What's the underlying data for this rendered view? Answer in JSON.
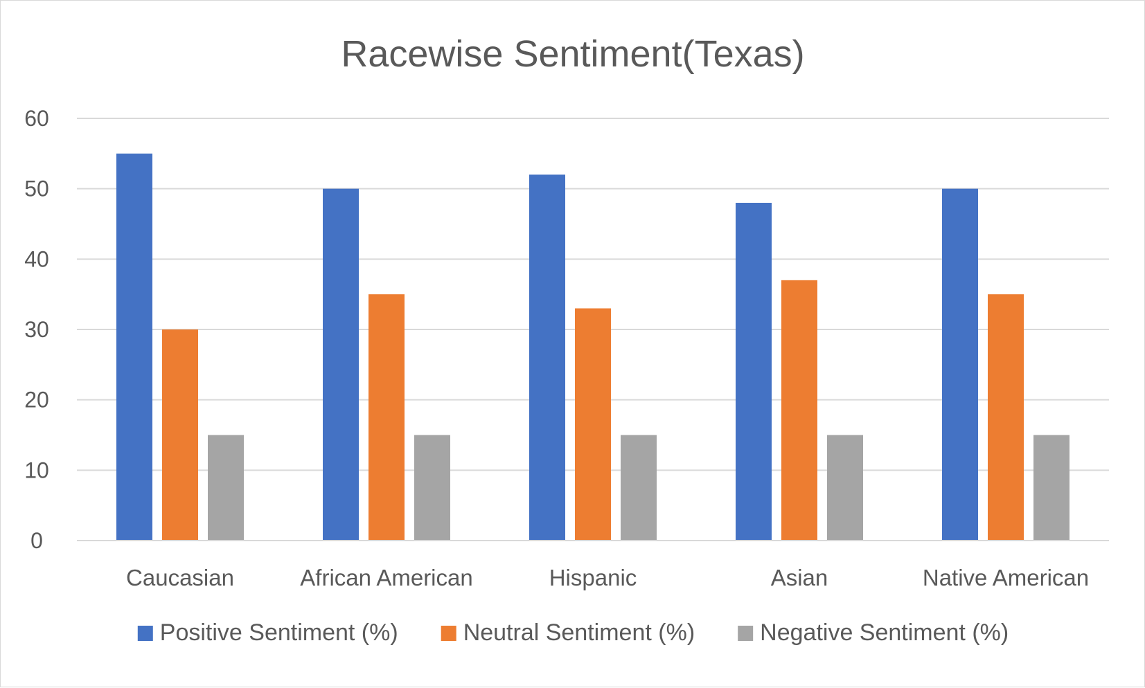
{
  "chart_data": {
    "type": "bar",
    "title": "Racewise Sentiment(Texas)",
    "xlabel": "",
    "ylabel": "",
    "categories": [
      "Caucasian",
      "African American",
      "Hispanic",
      "Asian",
      "Native American"
    ],
    "series": [
      {
        "name": "Positive Sentiment (%)",
        "values": [
          55,
          50,
          52,
          48,
          50
        ],
        "color": "#4472c4"
      },
      {
        "name": "Neutral Sentiment (%)",
        "values": [
          30,
          35,
          33,
          37,
          35
        ],
        "color": "#ed7d31"
      },
      {
        "name": "Negative Sentiment (%)",
        "values": [
          15,
          15,
          15,
          15,
          15
        ],
        "color": "#a5a5a5"
      }
    ],
    "ylim": [
      0,
      60
    ],
    "yticks": [
      0,
      10,
      20,
      30,
      40,
      50,
      60
    ],
    "grid": true,
    "legend": "bottom",
    "gridline_color": "#d9d9d9",
    "text_color": "#595959"
  }
}
